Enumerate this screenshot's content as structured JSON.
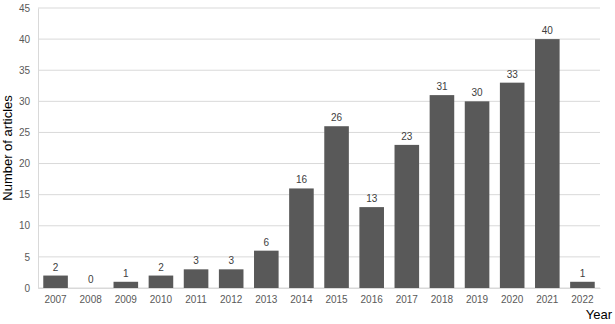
{
  "chart_data": {
    "type": "bar",
    "y_label": "Number of articles",
    "x_label": "Year",
    "categories": [
      "2007",
      "2008",
      "2009",
      "2010",
      "2011",
      "2012",
      "2013",
      "2014",
      "2015",
      "2016",
      "2017",
      "2018",
      "2019",
      "2020",
      "2021",
      "2022"
    ],
    "values": [
      2,
      0,
      1,
      2,
      3,
      3,
      6,
      16,
      26,
      13,
      23,
      31,
      30,
      33,
      40,
      1
    ],
    "color": "#595959",
    "ylim": [
      0,
      45
    ],
    "yticks": [
      0,
      5,
      10,
      15,
      20,
      25,
      30,
      35,
      40,
      45
    ],
    "grid": true,
    "data_labels": true
  }
}
